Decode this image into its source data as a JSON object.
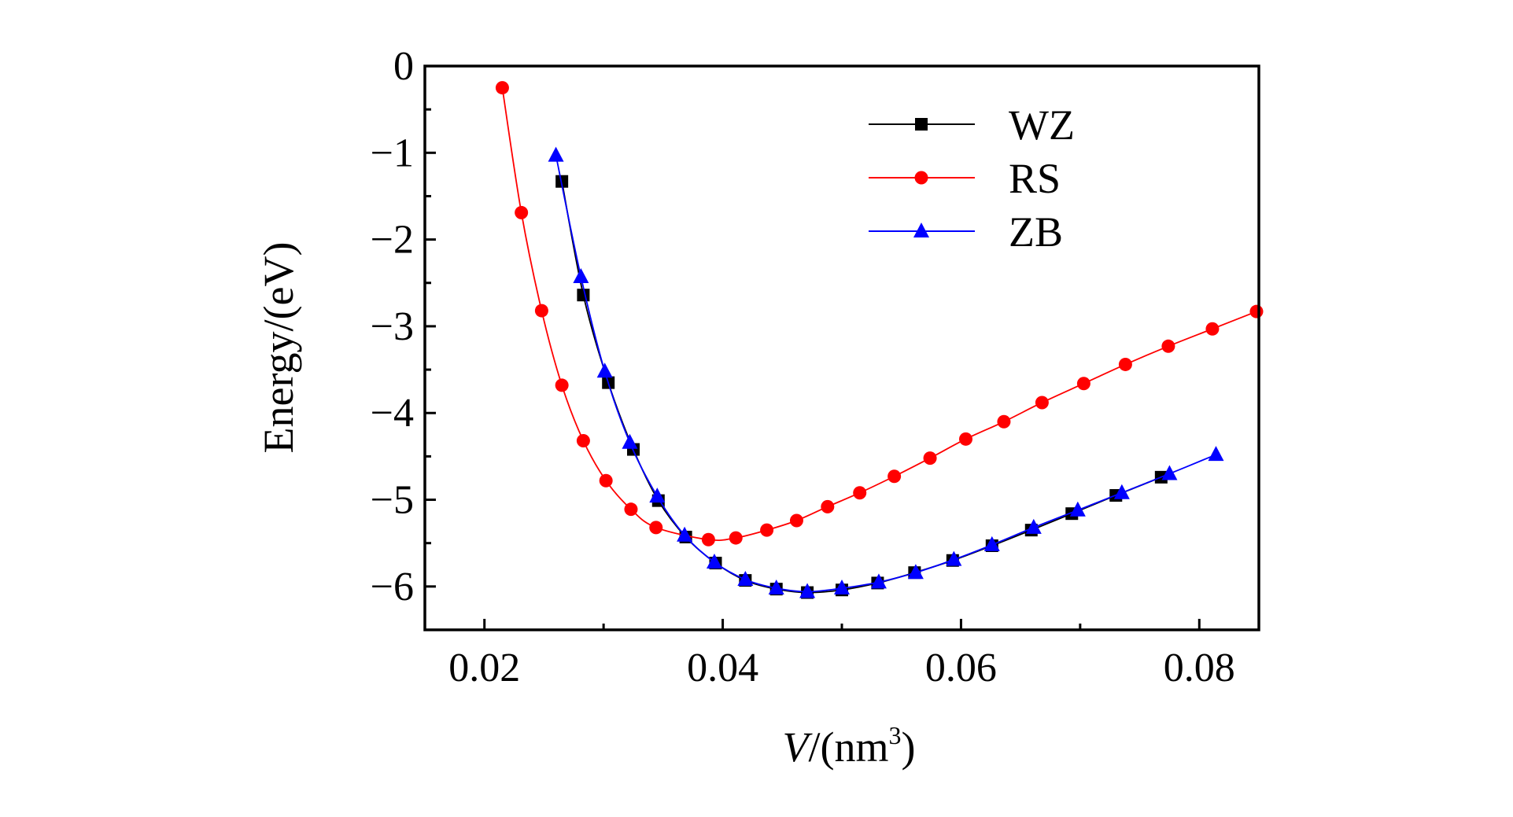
{
  "chart_data": {
    "type": "line",
    "title": "",
    "xlabel": "V/(nm³)",
    "xlabel_italic": "V",
    "xlabel_rest": "/(nm",
    "xlabel_sup": "3",
    "xlabel_close": ")",
    "ylabel": "Energy/(eV)",
    "xlim": [
      0.015,
      0.085
    ],
    "ylim": [
      -6.5,
      0
    ],
    "xticks": [
      0.02,
      0.04,
      0.06,
      0.08
    ],
    "xtick_labels": [
      "0.02",
      "0.04",
      "0.06",
      "0.08"
    ],
    "yticks": [
      0,
      -1,
      -2,
      -3,
      -4,
      -5,
      -6
    ],
    "ytick_labels": [
      "0",
      "−1",
      "−2",
      "−3",
      "−4",
      "−5",
      "−6"
    ],
    "grid": false,
    "legend_position": "top-right",
    "series": [
      {
        "name": "WZ",
        "color": "#000000",
        "marker": "square",
        "x": [
          0.0265,
          0.0283,
          0.0304,
          0.0325,
          0.0346,
          0.0369,
          0.0394,
          0.0419,
          0.0445,
          0.0471,
          0.05,
          0.053,
          0.0561,
          0.0593,
          0.0626,
          0.0659,
          0.0693,
          0.073,
          0.0768
        ],
        "y": [
          -1.33,
          -2.64,
          -3.65,
          -4.42,
          -5.01,
          -5.43,
          -5.73,
          -5.93,
          -6.03,
          -6.07,
          -6.04,
          -5.96,
          -5.84,
          -5.7,
          -5.53,
          -5.35,
          -5.16,
          -4.95,
          -4.74
        ]
      },
      {
        "name": "RS",
        "color": "#ff0000",
        "marker": "circle",
        "x": [
          0.0215,
          0.0231,
          0.0248,
          0.0265,
          0.0283,
          0.0302,
          0.0323,
          0.0344,
          0.0388,
          0.0411,
          0.0437,
          0.0462,
          0.0488,
          0.0515,
          0.0544,
          0.0574,
          0.0604,
          0.0636,
          0.0668,
          0.0703,
          0.0738,
          0.0774,
          0.0811,
          0.0848
        ],
        "y": [
          -0.25,
          -1.69,
          -2.82,
          -3.68,
          -4.32,
          -4.78,
          -5.11,
          -5.32,
          -5.46,
          -5.44,
          -5.35,
          -5.24,
          -5.08,
          -4.92,
          -4.73,
          -4.52,
          -4.3,
          -4.1,
          -3.88,
          -3.66,
          -3.44,
          -3.23,
          -3.03,
          -2.83
        ]
      },
      {
        "name": "ZB",
        "color": "#0000ff",
        "marker": "triangle",
        "x": [
          0.026,
          0.0281,
          0.0301,
          0.0322,
          0.0345,
          0.0368,
          0.0393,
          0.0419,
          0.0445,
          0.0471,
          0.05,
          0.0531,
          0.0562,
          0.0594,
          0.0626,
          0.0661,
          0.0698,
          0.0735,
          0.0775,
          0.0814
        ],
        "y": [
          -1.03,
          -2.43,
          -3.52,
          -4.34,
          -4.96,
          -5.41,
          -5.72,
          -5.92,
          -6.02,
          -6.06,
          -6.02,
          -5.95,
          -5.84,
          -5.69,
          -5.52,
          -5.32,
          -5.12,
          -4.92,
          -4.7,
          -4.48
        ]
      }
    ]
  }
}
